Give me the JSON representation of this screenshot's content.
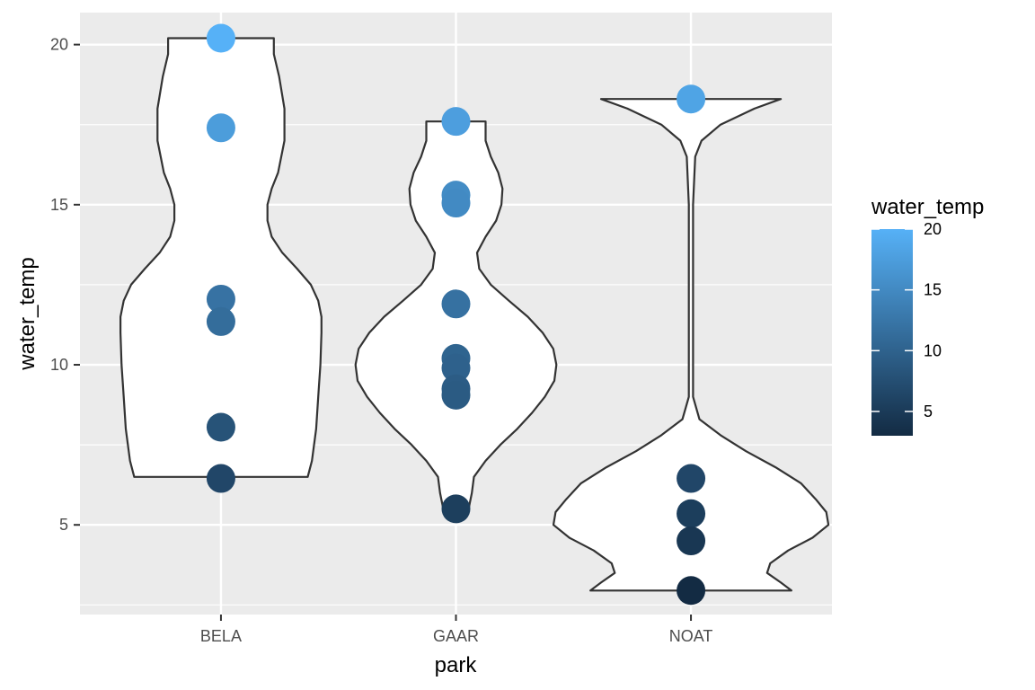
{
  "chart_data": {
    "type": "violin",
    "xlabel": "park",
    "ylabel": "water_temp",
    "categories": [
      "BELA",
      "GAAR",
      "NOAT"
    ],
    "ylim": [
      2.2,
      21.0
    ],
    "y_ticks": [
      5,
      10,
      15,
      20
    ],
    "grid": true,
    "legend": {
      "title": "water_temp",
      "type": "colorbar",
      "placement": "right",
      "range": [
        3,
        20
      ],
      "ticks": [
        5,
        10,
        15,
        20
      ],
      "color_low": "#132B43",
      "color_high": "#56B1F7"
    },
    "points": {
      "BELA": [
        20.2,
        17.4,
        12.05,
        11.35,
        8.05,
        6.45
      ],
      "GAAR": [
        17.6,
        15.3,
        15.05,
        11.9,
        10.2,
        9.9,
        9.25,
        9.05,
        5.5
      ],
      "NOAT": [
        18.3,
        6.45,
        5.35,
        4.5,
        2.95
      ]
    },
    "violins": {
      "BELA": {
        "range": [
          6.5,
          20.2
        ],
        "profile": [
          [
            6.5,
            0.82
          ],
          [
            7.0,
            0.86
          ],
          [
            8.0,
            0.9
          ],
          [
            9.0,
            0.92
          ],
          [
            10.0,
            0.94
          ],
          [
            11.0,
            0.95
          ],
          [
            11.5,
            0.95
          ],
          [
            12.0,
            0.92
          ],
          [
            12.5,
            0.85
          ],
          [
            13.0,
            0.72
          ],
          [
            13.5,
            0.58
          ],
          [
            14.0,
            0.48
          ],
          [
            14.5,
            0.44
          ],
          [
            15.0,
            0.44
          ],
          [
            15.5,
            0.48
          ],
          [
            16.0,
            0.54
          ],
          [
            17.0,
            0.6
          ],
          [
            18.0,
            0.6
          ],
          [
            19.0,
            0.55
          ],
          [
            19.7,
            0.5
          ],
          [
            20.2,
            0.5
          ]
        ]
      },
      "GAAR": {
        "range": [
          5.5,
          17.6
        ],
        "profile": [
          [
            5.5,
            0.12
          ],
          [
            6.0,
            0.15
          ],
          [
            6.5,
            0.17
          ],
          [
            7.0,
            0.28
          ],
          [
            7.5,
            0.42
          ],
          [
            8.0,
            0.58
          ],
          [
            8.5,
            0.72
          ],
          [
            9.0,
            0.84
          ],
          [
            9.5,
            0.93
          ],
          [
            10.0,
            0.95
          ],
          [
            10.5,
            0.92
          ],
          [
            11.0,
            0.82
          ],
          [
            11.5,
            0.68
          ],
          [
            12.0,
            0.5
          ],
          [
            12.5,
            0.33
          ],
          [
            13.0,
            0.22
          ],
          [
            13.5,
            0.2
          ],
          [
            14.0,
            0.28
          ],
          [
            14.5,
            0.38
          ],
          [
            15.0,
            0.43
          ],
          [
            15.5,
            0.44
          ],
          [
            16.0,
            0.4
          ],
          [
            16.5,
            0.33
          ],
          [
            17.0,
            0.28
          ],
          [
            17.6,
            0.28
          ]
        ]
      },
      "NOAT": {
        "range": [
          2.95,
          18.3
        ],
        "profile": [
          [
            2.95,
            0.95
          ],
          [
            3.2,
            0.85
          ],
          [
            3.5,
            0.72
          ],
          [
            3.8,
            0.75
          ],
          [
            4.2,
            0.92
          ],
          [
            4.6,
            1.15
          ],
          [
            5.0,
            1.3
          ],
          [
            5.4,
            1.28
          ],
          [
            5.8,
            1.18
          ],
          [
            6.3,
            1.04
          ],
          [
            6.8,
            0.8
          ],
          [
            7.3,
            0.52
          ],
          [
            7.8,
            0.28
          ],
          [
            8.3,
            0.08
          ],
          [
            9.0,
            0.02
          ],
          [
            12.0,
            0.02
          ],
          [
            15.0,
            0.02
          ],
          [
            16.5,
            0.04
          ],
          [
            17.0,
            0.1
          ],
          [
            17.5,
            0.28
          ],
          [
            18.0,
            0.6
          ],
          [
            18.3,
            0.85
          ]
        ]
      }
    }
  }
}
